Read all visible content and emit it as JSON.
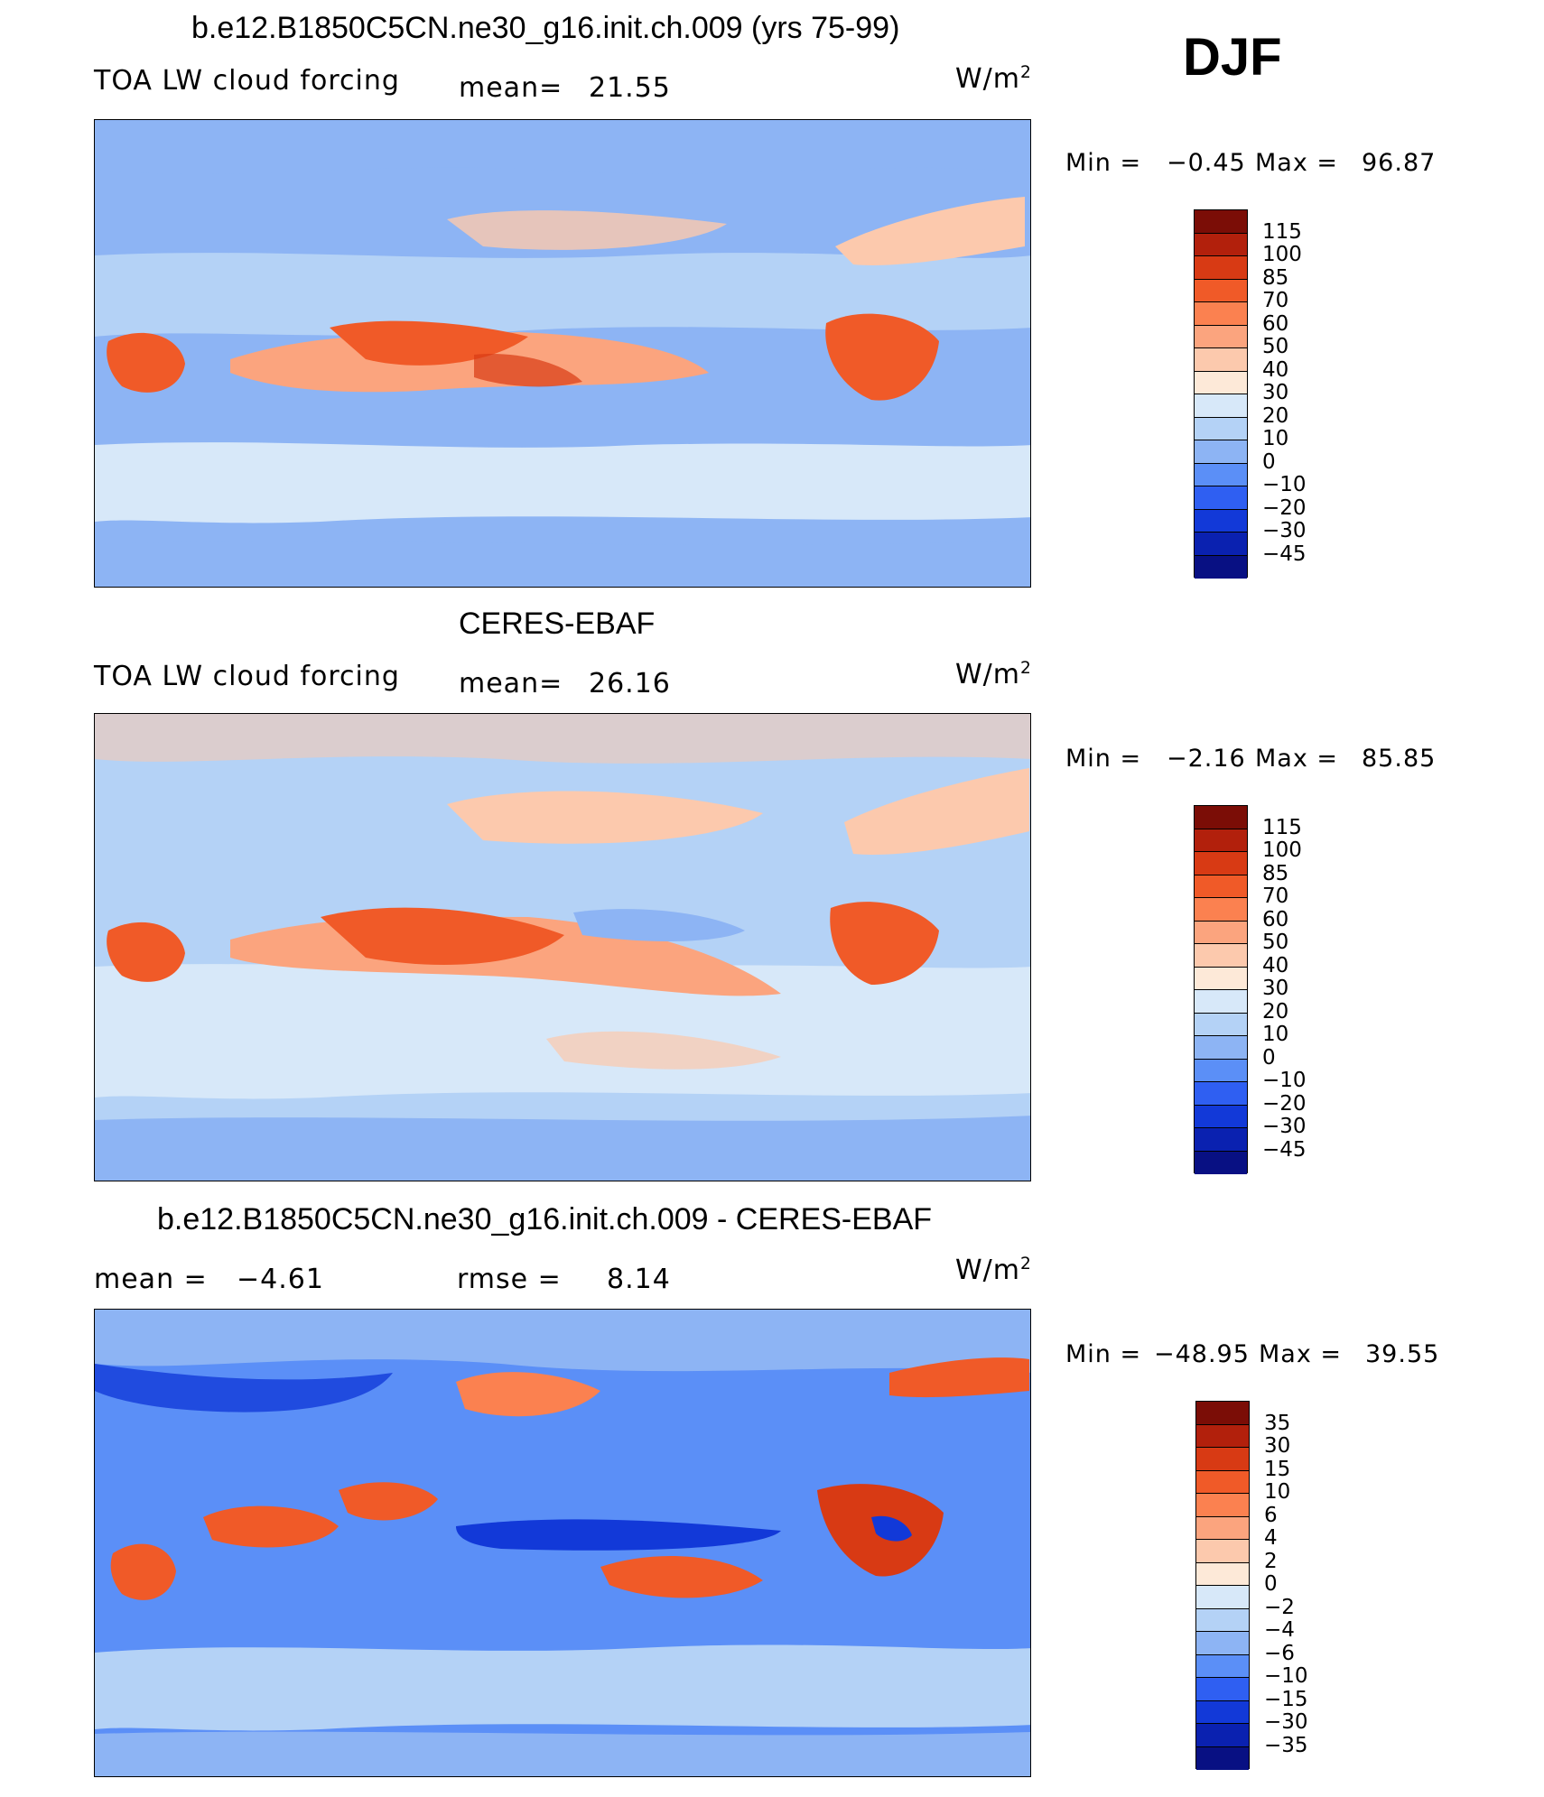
{
  "season": "DJF",
  "units_text": "W/m",
  "units_sup": "2",
  "panels": [
    {
      "title": "b.e12.B1850C5CN.ne30_g16.init.ch.009 (yrs 75-99)",
      "variable": "TOA LW cloud forcing",
      "stat1_label": "mean=",
      "stat1_value": "21.55",
      "min_label": "Min =",
      "min_value": "−0.45",
      "max_label": "Max =",
      "max_value": "96.87",
      "levels": [
        "115",
        "100",
        "85",
        "70",
        "60",
        "50",
        "40",
        "30",
        "20",
        "10",
        "0",
        "−10",
        "−20",
        "−30",
        "−45"
      ],
      "colors": [
        "#7b0d06",
        "#b2200c",
        "#d83a14",
        "#f05a28",
        "#fb8150",
        "#fba47e",
        "#fcc9ad",
        "#fde9d8",
        "#d7e8f9",
        "#b4d2f6",
        "#8db4f4",
        "#5b8ff7",
        "#2f5ff2",
        "#1239d8",
        "#0a21b0",
        "#081083"
      ]
    },
    {
      "title": "CERES-EBAF",
      "variable": "TOA LW cloud forcing",
      "stat1_label": "mean=",
      "stat1_value": "26.16",
      "min_label": "Min =",
      "min_value": "−2.16",
      "max_label": "Max =",
      "max_value": "85.85",
      "levels": [
        "115",
        "100",
        "85",
        "70",
        "60",
        "50",
        "40",
        "30",
        "20",
        "10",
        "0",
        "−10",
        "−20",
        "−30",
        "−45"
      ],
      "colors": [
        "#7b0d06",
        "#b2200c",
        "#d83a14",
        "#f05a28",
        "#fb8150",
        "#fba47e",
        "#fcc9ad",
        "#fde9d8",
        "#d7e8f9",
        "#b4d2f6",
        "#8db4f4",
        "#5b8ff7",
        "#2f5ff2",
        "#1239d8",
        "#0a21b0",
        "#081083"
      ]
    },
    {
      "title": "b.e12.B1850C5CN.ne30_g16.init.ch.009 - CERES-EBAF",
      "variable": "",
      "stat1_label": "mean =",
      "stat1_value": "−4.61",
      "stat2_label": "rmse =",
      "stat2_value": "8.14",
      "min_label": "Min =",
      "min_value": "−48.95",
      "max_label": "Max =",
      "max_value": "39.55",
      "levels": [
        "35",
        "30",
        "15",
        "10",
        "6",
        "4",
        "2",
        "0",
        "−2",
        "−4",
        "−6",
        "−10",
        "−15",
        "−30",
        "−35"
      ],
      "colors": [
        "#7b0d06",
        "#b2200c",
        "#d83a14",
        "#f05a28",
        "#fb8150",
        "#fba47e",
        "#fcc9ad",
        "#fde9d8",
        "#d7e8f9",
        "#b4d2f6",
        "#8db4f4",
        "#5b8ff7",
        "#2f5ff2",
        "#1239d8",
        "#0a21b0",
        "#081083"
      ]
    }
  ]
}
